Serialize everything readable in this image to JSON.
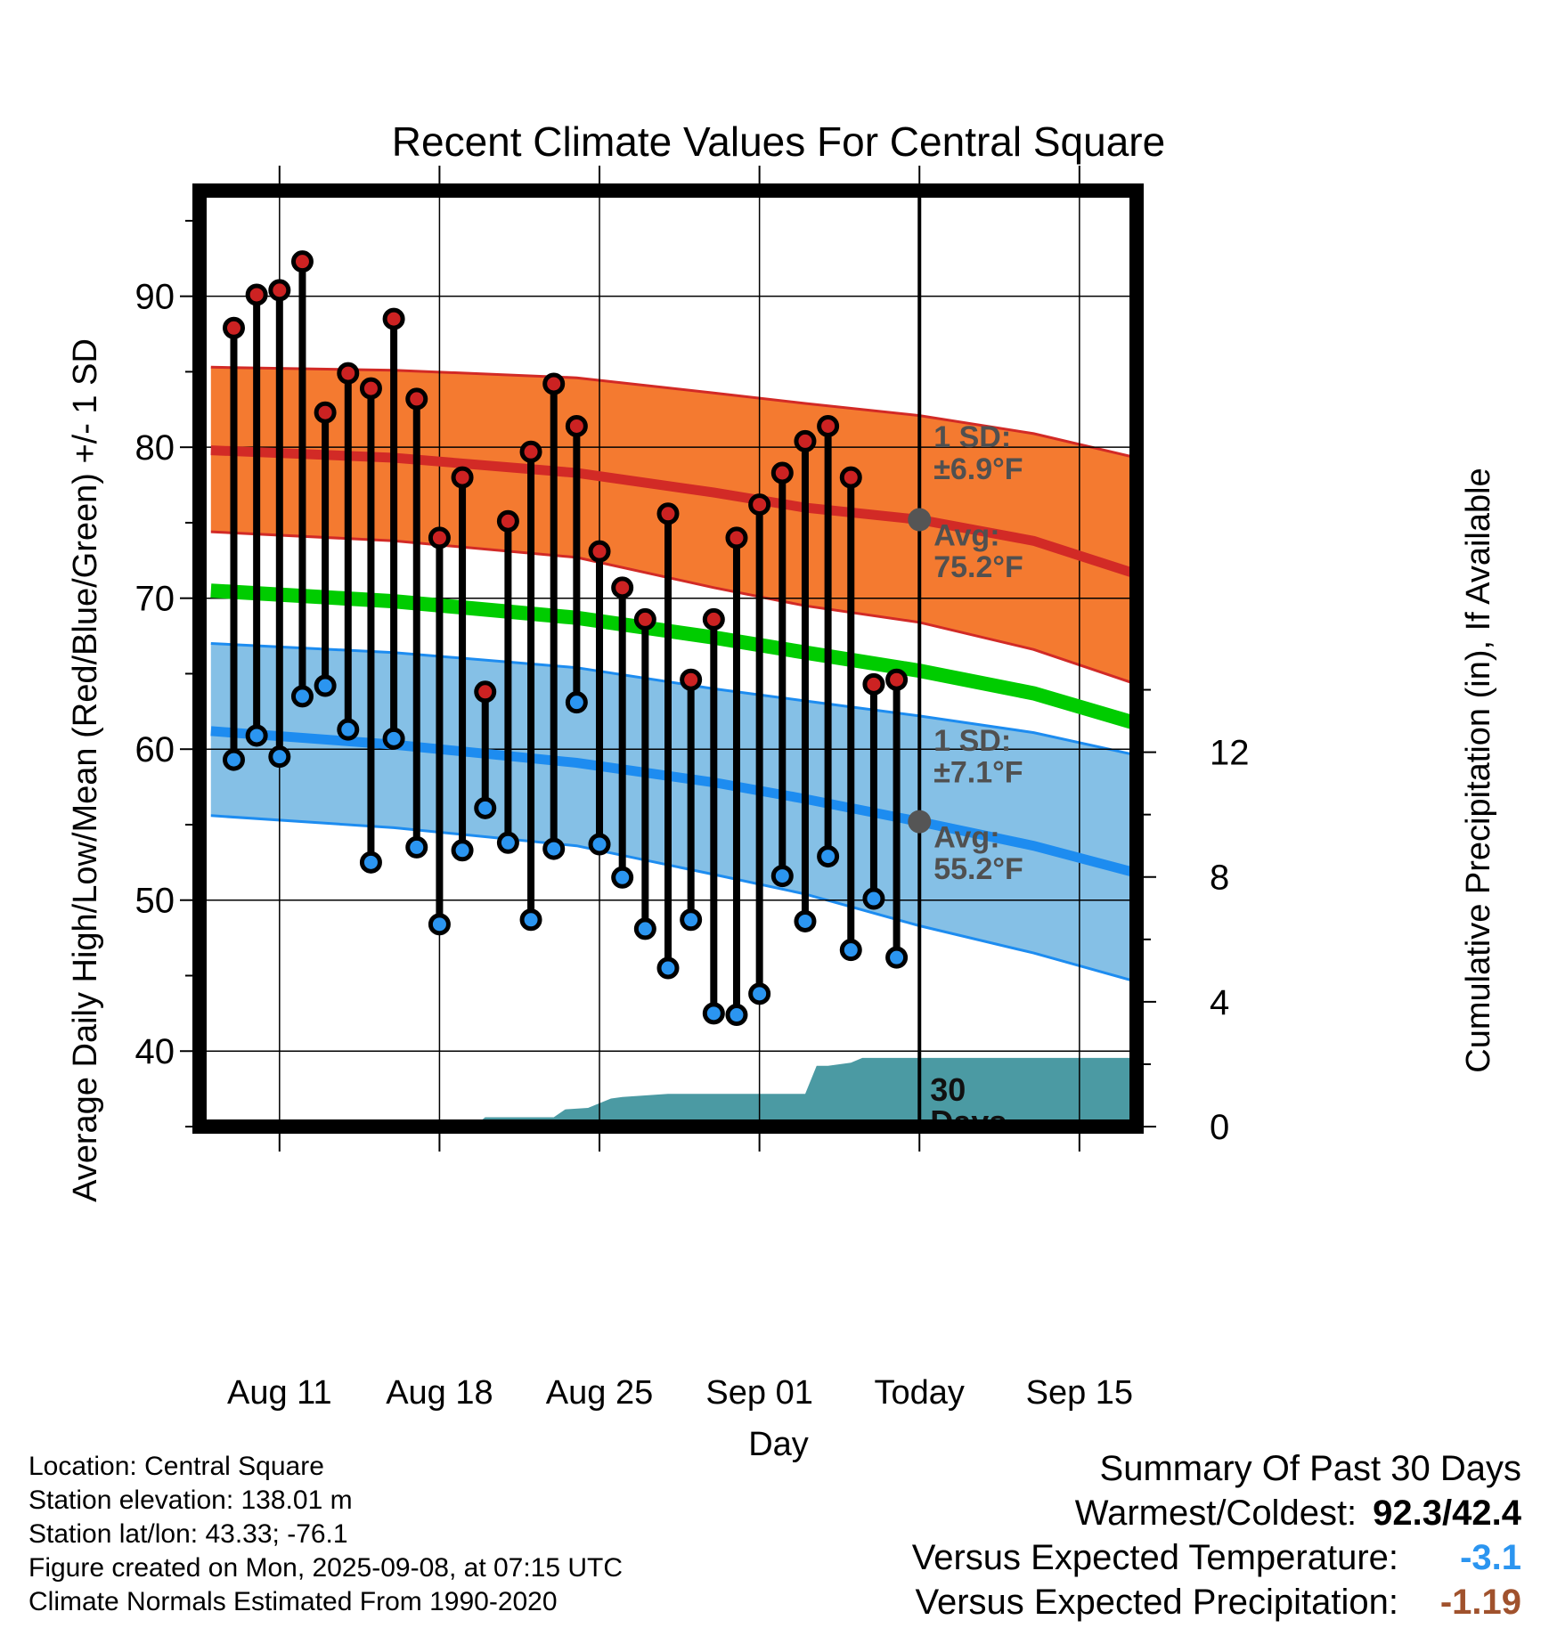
{
  "chart_data": {
    "type": "line",
    "title": "Recent Climate Values For Central Square",
    "xlabel": "Day",
    "ylabel": "Average Daily High/Low/Mean (Red/Blue/Green) +/- 1 SD",
    "ylabel_right": "Cumulative Precipitation (in), If Available",
    "ylim": [
      35,
      97
    ],
    "y2lim": [
      0,
      30
    ],
    "y_ticks": [
      40,
      50,
      60,
      70,
      80,
      90
    ],
    "y2_ticks": [
      0,
      4,
      8,
      12
    ],
    "x_ticks": [
      {
        "day": 3,
        "label": "Aug 11"
      },
      {
        "day": 10,
        "label": "Aug 18"
      },
      {
        "day": 17,
        "label": "Aug 25"
      },
      {
        "day": 24,
        "label": "Sep 01"
      },
      {
        "day": 31,
        "label": "Today"
      },
      {
        "day": 38,
        "label": "Sep 15"
      }
    ],
    "xlim": [
      -0.5,
      40.5
    ],
    "today_day": 31,
    "daily": [
      {
        "day": 1,
        "high": 87.9,
        "low": 59.3
      },
      {
        "day": 2,
        "high": 90.1,
        "low": 60.9
      },
      {
        "day": 3,
        "high": 90.4,
        "low": 59.5
      },
      {
        "day": 4,
        "high": 92.3,
        "low": 63.5
      },
      {
        "day": 5,
        "high": 82.3,
        "low": 64.2
      },
      {
        "day": 6,
        "high": 84.9,
        "low": 61.3
      },
      {
        "day": 7,
        "high": 83.9,
        "low": 52.5
      },
      {
        "day": 8,
        "high": 88.5,
        "low": 60.7
      },
      {
        "day": 9,
        "high": 83.2,
        "low": 53.5
      },
      {
        "day": 10,
        "high": 74.0,
        "low": 48.4
      },
      {
        "day": 11,
        "high": 78.0,
        "low": 53.3
      },
      {
        "day": 12,
        "high": 63.8,
        "low": 56.1
      },
      {
        "day": 13,
        "high": 75.1,
        "low": 53.8
      },
      {
        "day": 14,
        "high": 79.7,
        "low": 48.7
      },
      {
        "day": 15,
        "high": 84.2,
        "low": 53.4
      },
      {
        "day": 16,
        "high": 81.4,
        "low": 63.1
      },
      {
        "day": 17,
        "high": 73.1,
        "low": 53.7
      },
      {
        "day": 18,
        "high": 70.7,
        "low": 51.5
      },
      {
        "day": 19,
        "high": 68.6,
        "low": 48.1
      },
      {
        "day": 20,
        "high": 75.6,
        "low": 45.5
      },
      {
        "day": 21,
        "high": 64.6,
        "low": 48.7
      },
      {
        "day": 22,
        "high": 68.6,
        "low": 42.5
      },
      {
        "day": 23,
        "high": 74.0,
        "low": 42.4
      },
      {
        "day": 24,
        "high": 76.2,
        "low": 43.8
      },
      {
        "day": 25,
        "high": 78.3,
        "low": 51.6
      },
      {
        "day": 26,
        "high": 80.4,
        "low": 48.6
      },
      {
        "day": 27,
        "high": 81.4,
        "low": 52.9
      },
      {
        "day": 28,
        "high": 78.0,
        "low": 46.7
      },
      {
        "day": 29,
        "high": 64.3,
        "low": 50.1
      },
      {
        "day": 30,
        "high": 64.6,
        "low": 46.2
      }
    ],
    "normals": {
      "day": [
        0,
        8,
        16,
        22,
        26,
        31,
        36,
        40.5
      ],
      "high_avg": [
        79.8,
        79.3,
        78.3,
        77.0,
        76.0,
        75.2,
        73.8,
        71.6
      ],
      "high_sd": 6.9,
      "low_avg": [
        61.2,
        60.3,
        59.1,
        57.8,
        56.7,
        55.2,
        53.6,
        51.8
      ],
      "low_sd": 7.1,
      "mean_avg": [
        70.5,
        69.8,
        68.7,
        67.4,
        66.4,
        65.2,
        63.7,
        61.7
      ],
      "high_upper": [
        85.3,
        85.1,
        84.6,
        83.6,
        82.9,
        82.1,
        80.9,
        79.3
      ],
      "high_lower": [
        74.4,
        73.8,
        72.7,
        70.7,
        69.5,
        68.4,
        66.6,
        64.3
      ],
      "low_upper": [
        67.0,
        66.4,
        65.4,
        64.0,
        63.2,
        62.2,
        61.1,
        59.6
      ],
      "low_lower": [
        55.6,
        54.8,
        53.6,
        51.7,
        50.4,
        48.3,
        46.5,
        44.6
      ]
    },
    "precip_cumulative": {
      "day": [
        11.5,
        12.0,
        15.0,
        15.5,
        16.5,
        17.5,
        18.0,
        19.0,
        20.0,
        22.0,
        23.5,
        26.0,
        26.5,
        27.0,
        28.0,
        28.5,
        29.0,
        40.5
      ],
      "value": [
        0,
        0.3,
        0.3,
        0.55,
        0.6,
        0.9,
        0.95,
        1.0,
        1.05,
        1.05,
        1.05,
        1.05,
        1.95,
        1.95,
        2.05,
        2.2,
        2.2,
        2.2
      ]
    },
    "annotations": {
      "high_sd": "1 SD:",
      "high_sd_value": "±6.9°F",
      "high_avg": "Avg:",
      "high_avg_value": "75.2°F",
      "low_sd": "1 SD:",
      "low_sd_value": "±7.1°F",
      "low_avg": "Avg:",
      "low_avg_value": "55.2°F",
      "period_line1": "30",
      "period_line2": "Days"
    },
    "colors": {
      "high_band": "#f47a30",
      "high_line": "#d22a26",
      "low_band": "#85c0e6",
      "low_line": "#1d8cf0",
      "mean_line": "#00cc00",
      "precip": "#4b9aa3",
      "high_marker": "#cc2222",
      "low_marker": "#2b95f0",
      "annotation": "#505050"
    }
  },
  "footer": {
    "location": "Location: Central Square",
    "elevation": "Station elevation: 138.01 m",
    "latlon": "Station lat/lon: 43.33; -76.1",
    "created": "Figure created on Mon, 2025-09-08, at 07:15 UTC",
    "normals": "Climate Normals Estimated From 1990-2020"
  },
  "summary": {
    "heading": "Summary Of Past 30 Days",
    "warm_cold_label": "Warmest/Coldest:",
    "warm_cold_value": "92.3/42.4",
    "temp_label": "Versus Expected Temperature:",
    "temp_value": "-3.1",
    "temp_color": "#2b95f0",
    "precip_label": "Versus Expected Precipitation:",
    "precip_value": "-1.19",
    "precip_color": "#a0522d"
  }
}
